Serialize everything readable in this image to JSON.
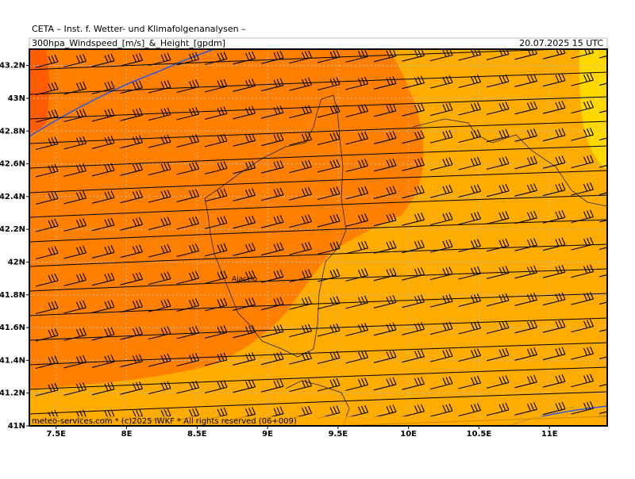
{
  "header": {
    "institute": "CETA – Inst. f. Wetter- und Klimafolgenanalysen –",
    "product": "300hpa_Windspeed_[m/s]_&_Height_[gpdm]",
    "valid_time": "20.07.2025 15 UTC"
  },
  "map": {
    "xlim": [
      7.31,
      11.41
    ],
    "ylim": [
      41,
      43.3
    ],
    "xticks": [
      {
        "value": 7.5,
        "label": "7.5E"
      },
      {
        "value": 8,
        "label": "8E"
      },
      {
        "value": 8.5,
        "label": "8.5E"
      },
      {
        "value": 9,
        "label": "9E"
      },
      {
        "value": 9.5,
        "label": "9.5E"
      },
      {
        "value": 10,
        "label": "10E"
      },
      {
        "value": 10.5,
        "label": "10.5E"
      },
      {
        "value": 11,
        "label": "11E"
      }
    ],
    "yticks": [
      {
        "value": 41,
        "label": "41N"
      },
      {
        "value": 41.2,
        "label": "41.2N"
      },
      {
        "value": 41.4,
        "label": "41.4N"
      },
      {
        "value": 41.6,
        "label": "41.6N"
      },
      {
        "value": 41.8,
        "label": "41.8N"
      },
      {
        "value": 42,
        "label": "42N"
      },
      {
        "value": 42.2,
        "label": "42.2N"
      },
      {
        "value": 42.4,
        "label": "42.4N"
      },
      {
        "value": 42.6,
        "label": "42.6N"
      },
      {
        "value": 42.8,
        "label": "42.8N"
      },
      {
        "value": 43,
        "label": "43N"
      },
      {
        "value": 43.2,
        "label": "43.2N"
      }
    ],
    "place_label": "Ajaccio"
  },
  "footer": {
    "copyright": "meteo-services.com * (c)2025 IWKF * All rights reserved (06+009)"
  }
}
